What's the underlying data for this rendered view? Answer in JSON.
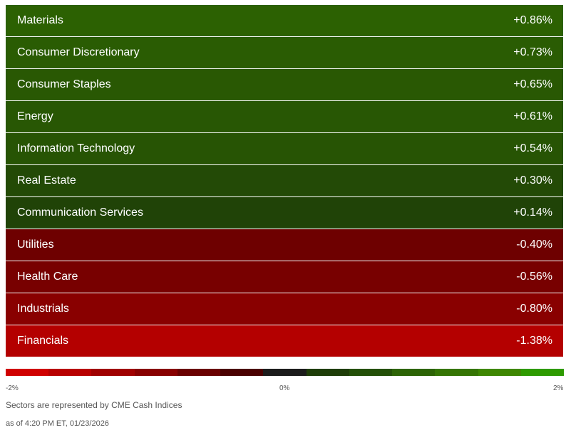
{
  "chart_data": {
    "type": "heatmap",
    "unit": "%",
    "rows": [
      {
        "label": "Materials",
        "display": "+0.86%",
        "value": 0.86
      },
      {
        "label": "Consumer Discretionary",
        "display": "+0.73%",
        "value": 0.73
      },
      {
        "label": "Consumer Staples",
        "display": "+0.65%",
        "value": 0.65
      },
      {
        "label": "Energy",
        "display": "+0.61%",
        "value": 0.61
      },
      {
        "label": "Information Technology",
        "display": "+0.54%",
        "value": 0.54
      },
      {
        "label": "Real Estate",
        "display": "+0.30%",
        "value": 0.3
      },
      {
        "label": "Communication Services",
        "display": "+0.14%",
        "value": 0.14
      },
      {
        "label": "Utilities",
        "display": "-0.40%",
        "value": -0.4
      },
      {
        "label": "Health Care",
        "display": "-0.56%",
        "value": -0.56
      },
      {
        "label": "Industrials",
        "display": "-0.80%",
        "value": -0.8
      },
      {
        "label": "Financials",
        "display": "-1.38%",
        "value": -1.38
      }
    ],
    "color_scale": {
      "min_label": "-2%",
      "mid_label": "0%",
      "max_label": "2%",
      "range": [
        -2,
        2
      ],
      "colors": [
        "#d00000",
        "#b80000",
        "#a00000",
        "#880000",
        "#6a0000",
        "#4a0000",
        "#1c1c1c",
        "#1e3d08",
        "#245008",
        "#2d6406",
        "#357504",
        "#3e8702",
        "#2e9a00"
      ]
    }
  },
  "footer": {
    "note": "Sectors are represented by CME Cash Indices",
    "as_of": "as of 4:20 PM ET, 01/23/2026"
  }
}
